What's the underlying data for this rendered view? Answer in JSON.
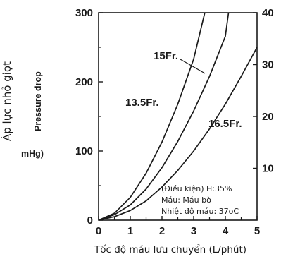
{
  "chart_data": {
    "type": "line",
    "xlabel": "Tốc độ máu lưu chuyển (L/phút)",
    "ylabel": "Áp lực nhỏ giọt",
    "ylabel_original": "Pressure drop",
    "ylabel_unit_fragment": "mHg)",
    "xlim": [
      0,
      5
    ],
    "ylim": [
      0,
      300
    ],
    "x_ticks": [
      "0",
      "1",
      "2",
      "3",
      "4",
      "5"
    ],
    "y_ticks": [
      "0",
      "100",
      "200",
      "300"
    ],
    "y2_ticks": [
      "10",
      "20",
      "30",
      "40"
    ],
    "grid": false,
    "series": [
      {
        "name": "13.5Fr.",
        "x": [
          0,
          0.5,
          1,
          1.5,
          2,
          2.5,
          3,
          3.35
        ],
        "y": [
          0,
          10,
          33,
          68,
          113,
          168,
          233,
          300
        ]
      },
      {
        "name": "15Fr.",
        "x": [
          0,
          0.5,
          1,
          1.5,
          2,
          2.5,
          3,
          3.5,
          4,
          4.1
        ],
        "y": [
          0,
          8,
          22,
          45,
          76,
          114,
          158,
          208,
          266,
          300
        ]
      },
      {
        "name": "16.5Fr.",
        "x": [
          0,
          0.5,
          1,
          1.5,
          2,
          2.5,
          3,
          3.5,
          4,
          4.5,
          5
        ],
        "y": [
          0,
          5,
          14,
          28,
          48,
          72,
          100,
          132,
          168,
          208,
          250
        ]
      }
    ],
    "annotations": [
      "(Điều kiện) H:35%",
      "Máu: Máu bò",
      "Nhiệt độ máu: 37oC"
    ]
  }
}
